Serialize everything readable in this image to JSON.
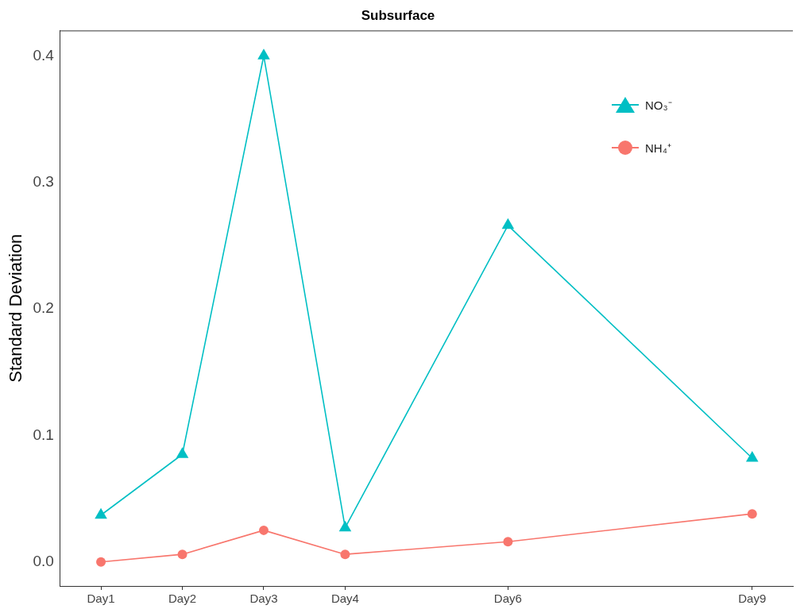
{
  "chart_data": {
    "type": "line",
    "title": "Subsurface",
    "ylabel": "Standard Deviation",
    "categories": [
      "Day1",
      "Day2",
      "Day3",
      "Day4",
      null,
      "Day6",
      null,
      null,
      "Day9"
    ],
    "ylim": [
      -0.019,
      0.42
    ],
    "yticks": [
      {
        "value": 0,
        "label": "0.0"
      },
      {
        "value": 0.1,
        "label": "0.1"
      },
      {
        "value": 0.2,
        "label": "0.2"
      },
      {
        "value": 0.3,
        "label": "0.3"
      },
      {
        "value": 0.4,
        "label": "0.4"
      }
    ],
    "series": [
      {
        "name": "NO₃⁻",
        "color": "#00bfc4",
        "marker": "triangle",
        "values": [
          0.037,
          0.085,
          0.4,
          0.027,
          null,
          0.266,
          null,
          null,
          0.082
        ]
      },
      {
        "name": "NH₄⁺",
        "color": "#f8766d",
        "marker": "circle",
        "values": [
          0,
          0.006,
          0.025,
          0.006,
          null,
          0.016,
          null,
          null,
          0.038
        ]
      }
    ],
    "legend": "top right",
    "line_style": "solid"
  }
}
